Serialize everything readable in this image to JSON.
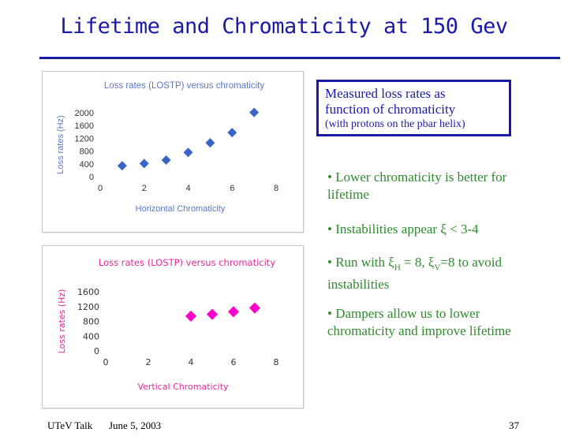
{
  "slide": {
    "title": "Lifetime and Chromaticity at 150 Gev",
    "box": {
      "line1": "Measured loss rates as",
      "line2": "function of chromaticity",
      "line3": "(with protons on the pbar helix)"
    },
    "bullets": [
      {
        "text": "• Lower chromaticity is better for lifetime"
      },
      {
        "text": "• Instabilities appear ξ < 3-4"
      },
      {
        "text": "• Run with ξ",
        "sub1": "H",
        "mid": " = 8, ξ",
        "sub2": "V",
        "end": "=8 to avoid instabilities"
      },
      {
        "text": "• Dampers allow us to lower chromaticity and improve lifetime"
      }
    ],
    "footer": {
      "left": "UTeV Talk",
      "date": "June 5, 2003",
      "page": "37"
    }
  },
  "colors": {
    "title": "#1a1aa6",
    "bullet": "#2e8b2e",
    "chart1_text": "#5a78c8",
    "chart2_text": "#e6289a",
    "marker1": "#3a64c8",
    "marker2": "#ff00cc"
  },
  "chart_data": [
    {
      "type": "scatter",
      "title": "Loss rates (LOSTP) versus chromaticity",
      "xlabel": "Horizontal Chromaticity",
      "ylabel": "Loss rates (Hz)",
      "xlim": [
        0,
        8
      ],
      "ylim": [
        0,
        2000
      ],
      "xticks": [
        0,
        2,
        4,
        6,
        8
      ],
      "yticks": [
        0,
        400,
        800,
        1200,
        1600,
        2000
      ],
      "x": [
        1,
        2,
        3,
        4,
        5,
        6,
        7
      ],
      "y": [
        340,
        410,
        520,
        760,
        1060,
        1380,
        2010
      ],
      "marker": "diamond"
    },
    {
      "type": "scatter",
      "title": "Loss rates (LOSTP) versus chromaticity",
      "xlabel": "Vertical Chromaticity",
      "ylabel": "Loss rates (Hz)",
      "xlim": [
        0,
        8
      ],
      "ylim": [
        0,
        1600
      ],
      "xticks": [
        0,
        2,
        4,
        6,
        8
      ],
      "yticks": [
        0,
        400,
        800,
        1200,
        1600
      ],
      "x": [
        4,
        5,
        6,
        7
      ],
      "y": [
        940,
        990,
        1060,
        1160
      ],
      "marker": "square"
    }
  ]
}
